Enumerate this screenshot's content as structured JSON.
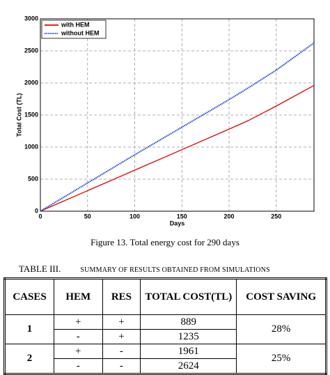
{
  "chart_data": {
    "type": "line",
    "xlabel": "Days",
    "ylabel": "Total Cost (TL)",
    "x": [
      0,
      50,
      100,
      150,
      200,
      220,
      250,
      290
    ],
    "series": [
      {
        "name": "with HEM",
        "color": "#e00000",
        "values": [
          0,
          320,
          640,
          960,
          1280,
          1410,
          1640,
          1961
        ]
      },
      {
        "name": "without HEM",
        "color": "#1a3fd0",
        "values": [
          0,
          440,
          880,
          1310,
          1740,
          1920,
          2200,
          2624
        ]
      }
    ],
    "xlim": [
      0,
      290
    ],
    "xticks": [
      0,
      50,
      100,
      150,
      200,
      250
    ],
    "ylim": [
      0,
      3000
    ],
    "yticks": [
      0,
      500,
      1000,
      1500,
      2000,
      2500,
      3000
    ],
    "grid": true,
    "legend": "upper-left"
  },
  "caption": "Figure 13.  Total energy cost for 290 days",
  "table": {
    "label": "TABLE III.",
    "title": "SUMMARY OF RESULTS OBTAINED FROM SIMULATIONS",
    "headers": [
      "CASES",
      "HEM",
      "RES",
      "TOTAL COST(TL)",
      "COST SAVING"
    ],
    "groups": [
      {
        "case": "1",
        "saving": "28%",
        "rows": [
          [
            "+",
            "+",
            "889"
          ],
          [
            "-",
            "+",
            "1235"
          ]
        ]
      },
      {
        "case": "2",
        "saving": "25%",
        "rows": [
          [
            "+",
            "-",
            "1961"
          ],
          [
            "-",
            "-",
            "2624"
          ]
        ]
      }
    ]
  }
}
